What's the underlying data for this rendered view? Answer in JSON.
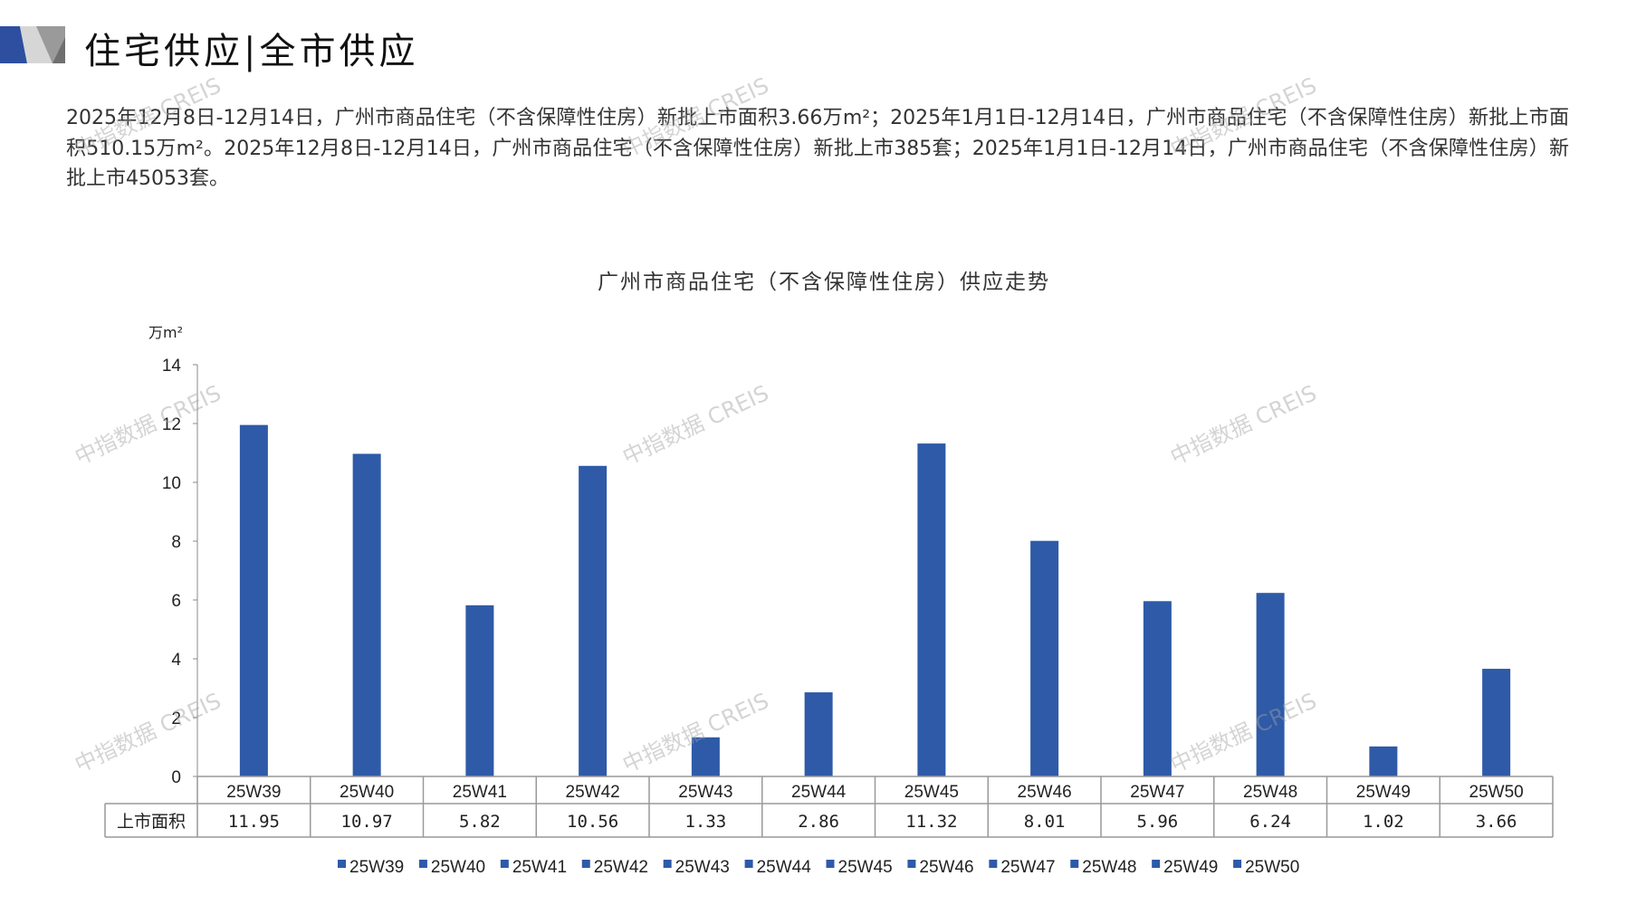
{
  "header": {
    "title": "住宅供应|全市供应"
  },
  "summary": "2025年12月8日-12月14日，广州市商品住宅（不含保障性住房）新批上市面积3.66万m²；2025年1月1日-12月14日，广州市商品住宅（不含保障性住房）新批上市面积510.15万m²。2025年12月8日-12月14日，广州市商品住宅（不含保障性住房）新批上市385套；2025年1月1日-12月14日，广州市商品住宅（不含保障性住房）新批上市45053套。",
  "watermark": "中指数据 CREIS",
  "chart_data": {
    "type": "bar",
    "title": "广州市商品住宅（不含保障性住房）供应走势",
    "ylabel": "万m²",
    "ylim": [
      0,
      14
    ],
    "yticks": [
      0,
      2,
      4,
      6,
      8,
      10,
      12,
      14
    ],
    "categories": [
      "25W39",
      "25W40",
      "25W41",
      "25W42",
      "25W43",
      "25W44",
      "25W45",
      "25W46",
      "25W47",
      "25W48",
      "25W49",
      "25W50"
    ],
    "series": [
      {
        "name": "上市面积",
        "values": [
          11.95,
          10.97,
          5.82,
          10.56,
          1.33,
          2.86,
          11.32,
          8.01,
          5.96,
          6.24,
          1.02,
          3.66
        ]
      }
    ],
    "table_values": [
      "11.95",
      "10.97",
      "5.82",
      "10.56",
      "1.33",
      "2.86",
      "11.32",
      "8.01",
      "5.96",
      "6.24",
      "1.02",
      "3.66"
    ],
    "legend": [
      "25W39",
      "25W40",
      "25W41",
      "25W42",
      "25W43",
      "25W44",
      "25W45",
      "25W46",
      "25W47",
      "25W48",
      "25W49",
      "25W50"
    ],
    "legend_position": "bottom",
    "grid": false,
    "bar_color": "#2E5AA8"
  }
}
